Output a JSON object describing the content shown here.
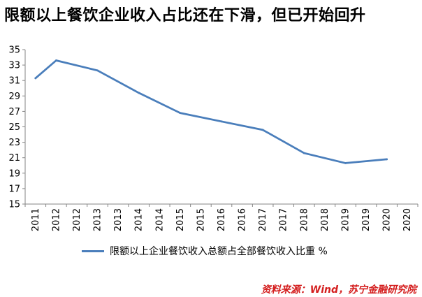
{
  "title": "限额以上餐饮企业收入占比还在下滑，但已开始回升",
  "source": "资料来源：Wind，苏宁金融研究院",
  "colors": {
    "line": "#4a7ebb",
    "axis": "#868686",
    "source": "#d41e1e"
  },
  "chart_data": {
    "type": "line",
    "title": "限额以上餐饮企业收入占比还在下滑，但已开始回升",
    "xlabel": "",
    "ylabel": "",
    "ylim": [
      15,
      35
    ],
    "yticks": [
      15,
      17,
      19,
      21,
      23,
      25,
      27,
      29,
      31,
      33,
      35
    ],
    "grid": false,
    "legend_position": "bottom",
    "x_tick_labels": [
      "2011",
      "2012",
      "2012",
      "2013",
      "2013",
      "2014",
      "2014",
      "2015",
      "2015",
      "2016",
      "2016",
      "2017",
      "2017",
      "2018",
      "2018",
      "2019",
      "2019",
      "2020",
      "2020"
    ],
    "series": [
      {
        "name": "限额以上企业餐饮收入总额占全部餐饮收入比重 %",
        "x": [
          "2011",
          "2012",
          "2013",
          "2014",
          "2015",
          "2016",
          "2017",
          "2018",
          "2019",
          "2020"
        ],
        "values": [
          31.3,
          33.6,
          32.3,
          29.4,
          26.8,
          25.7,
          24.6,
          21.6,
          20.3,
          20.8
        ]
      }
    ]
  }
}
